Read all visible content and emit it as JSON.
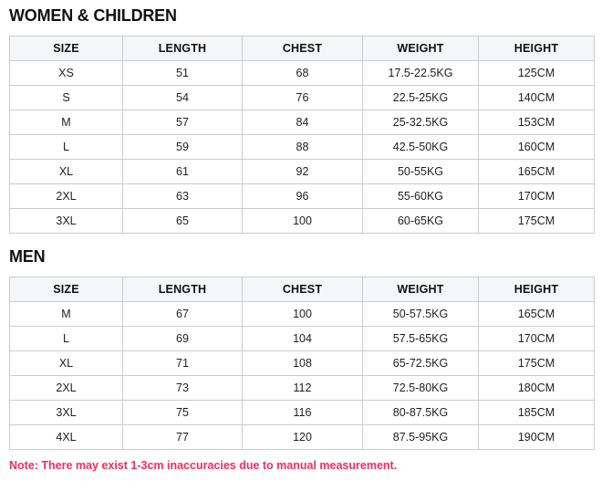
{
  "sections": [
    {
      "id": "women-children",
      "title": "WOMEN & CHILDREN",
      "headers": [
        "SIZE",
        "LENGTH",
        "CHEST",
        "WEIGHT",
        "HEIGHT"
      ],
      "rows": [
        [
          "XS",
          "51",
          "68",
          "17.5-22.5KG",
          "125CM"
        ],
        [
          "S",
          "54",
          "76",
          "22.5-25KG",
          "140CM"
        ],
        [
          "M",
          "57",
          "84",
          "25-32.5KG",
          "153CM"
        ],
        [
          "L",
          "59",
          "88",
          "42.5-50KG",
          "160CM"
        ],
        [
          "XL",
          "61",
          "92",
          "50-55KG",
          "165CM"
        ],
        [
          "2XL",
          "63",
          "96",
          "55-60KG",
          "170CM"
        ],
        [
          "3XL",
          "65",
          "100",
          "60-65KG",
          "175CM"
        ]
      ]
    },
    {
      "id": "men",
      "title": "MEN",
      "headers": [
        "SIZE",
        "LENGTH",
        "CHEST",
        "WEIGHT",
        "HEIGHT"
      ],
      "rows": [
        [
          "M",
          "67",
          "100",
          "50-57.5KG",
          "165CM"
        ],
        [
          "L",
          "69",
          "104",
          "57.5-65KG",
          "170CM"
        ],
        [
          "XL",
          "71",
          "108",
          "65-72.5KG",
          "175CM"
        ],
        [
          "2XL",
          "73",
          "112",
          "72.5-80KG",
          "180CM"
        ],
        [
          "3XL",
          "75",
          "116",
          "80-87.5KG",
          "185CM"
        ],
        [
          "4XL",
          "77",
          "120",
          "87.5-95KG",
          "190CM"
        ]
      ]
    }
  ],
  "note": {
    "text": "Note: There may exist 1-3cm inaccuracies due to manual measurement."
  },
  "colors": {
    "header_bg": "#f5f6f7",
    "border": "#cccccc",
    "note_text": "#f9295d",
    "body_text": "#1f1f1f"
  }
}
